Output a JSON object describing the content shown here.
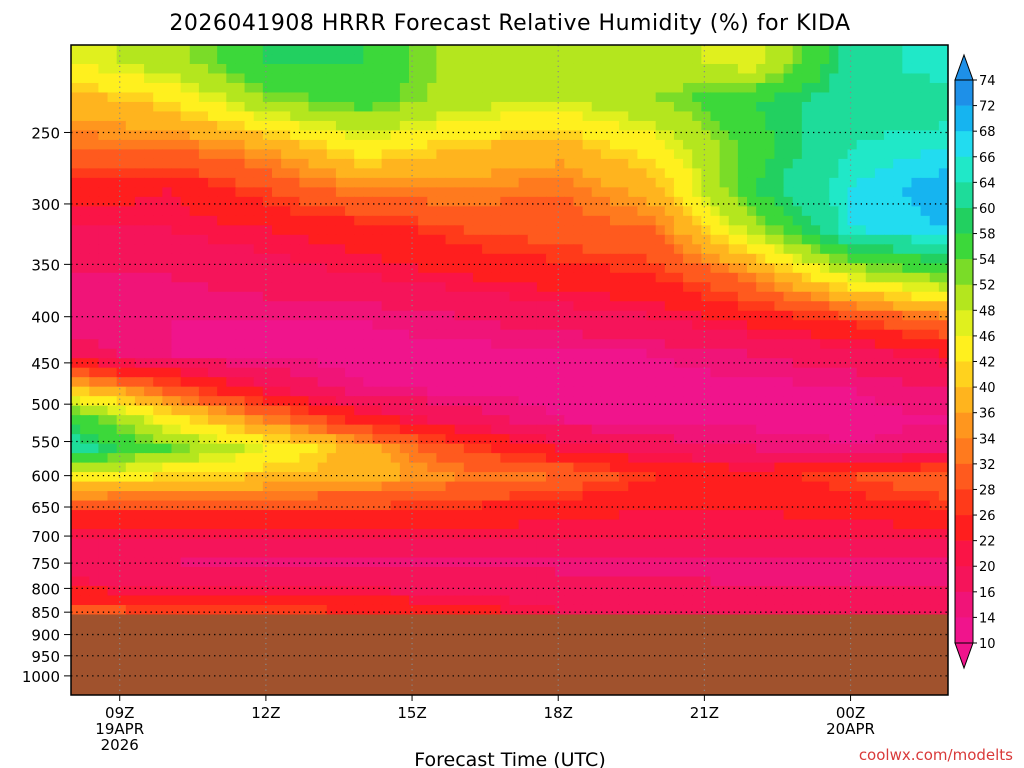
{
  "chart_data": {
    "type": "heatmap",
    "title": "2026041908 HRRR Forecast Relative Humidity (%) for KIDA",
    "xlabel": "Forecast Time (UTC)",
    "credit": "coolwx.com/modelts",
    "x_ticks": [
      {
        "hour": 9,
        "lines": [
          "09Z",
          "19APR",
          "2026"
        ]
      },
      {
        "hour": 12,
        "lines": [
          "12Z"
        ]
      },
      {
        "hour": 15,
        "lines": [
          "15Z"
        ]
      },
      {
        "hour": 18,
        "lines": [
          "18Z"
        ]
      },
      {
        "hour": 21,
        "lines": [
          "21Z"
        ]
      },
      {
        "hour": 24,
        "lines": [
          "00Z",
          "20APR"
        ]
      }
    ],
    "x_range_hours": [
      8,
      26
    ],
    "y_ticks": [
      250,
      300,
      350,
      400,
      450,
      500,
      550,
      600,
      650,
      700,
      750,
      800,
      850,
      900,
      950,
      1000
    ],
    "y_range_hpa": [
      200,
      1050
    ],
    "y_scale": "log",
    "below_ground_hpa": 855,
    "grid": true,
    "colorbar_levels": [
      74,
      72,
      68,
      66,
      64,
      60,
      58,
      54,
      52,
      48,
      46,
      42,
      40,
      36,
      34,
      32,
      28,
      26,
      22,
      20,
      16,
      14,
      10
    ],
    "colorbar_colors": [
      "#1e90e8",
      "#16b4f0",
      "#22dcf0",
      "#20e8c8",
      "#1edc9a",
      "#22d060",
      "#3cd83a",
      "#7adc28",
      "#b4e61e",
      "#e0f01e",
      "#fff01e",
      "#ffd21e",
      "#ffb41e",
      "#ff961e",
      "#ff7a1e",
      "#ff5a1e",
      "#ff3a1a",
      "#ff1e1e",
      "#fa1446",
      "#f5145a",
      "#f01478",
      "#f0148c"
    ],
    "colorbar_extends": [
      "max",
      "min"
    ],
    "colorbar_position": "right",
    "ground_color": "#a0522d",
    "relative_humidity_percent": {
      "forecast_hours": [
        8,
        10,
        12,
        14,
        16,
        18,
        20,
        22,
        24,
        26
      ],
      "pressure_hpa": [
        210,
        230,
        260,
        290,
        320,
        360,
        400,
        440,
        480,
        520,
        560,
        600,
        650,
        700,
        750,
        800,
        850
      ],
      "values": [
        [
          46,
          50,
          58,
          58,
          50,
          52,
          50,
          46,
          62,
          66
        ],
        [
          38,
          42,
          52,
          56,
          50,
          48,
          52,
          58,
          62,
          62
        ],
        [
          32,
          32,
          36,
          44,
          40,
          38,
          44,
          56,
          64,
          66
        ],
        [
          24,
          22,
          28,
          34,
          34,
          32,
          38,
          58,
          66,
          70
        ],
        [
          20,
          20,
          22,
          24,
          28,
          30,
          32,
          50,
          66,
          68
        ],
        [
          16,
          16,
          18,
          20,
          22,
          24,
          26,
          34,
          48,
          54
        ],
        [
          14,
          14,
          14,
          14,
          16,
          18,
          20,
          24,
          28,
          34
        ],
        [
          18,
          14,
          13,
          13,
          13,
          13,
          14,
          16,
          18,
          22
        ],
        [
          40,
          30,
          20,
          14,
          13,
          13,
          13,
          13,
          14,
          16
        ],
        [
          58,
          44,
          34,
          24,
          18,
          14,
          13,
          13,
          13,
          14
        ],
        [
          62,
          54,
          46,
          38,
          28,
          22,
          18,
          16,
          14,
          16
        ],
        [
          46,
          42,
          40,
          38,
          34,
          32,
          26,
          24,
          28,
          32
        ],
        [
          28,
          28,
          28,
          28,
          26,
          24,
          22,
          22,
          24,
          26
        ],
        [
          20,
          20,
          20,
          20,
          20,
          20,
          20,
          20,
          20,
          20
        ],
        [
          16,
          16,
          15,
          15,
          15,
          15,
          15,
          15,
          15,
          15
        ],
        [
          22,
          20,
          20,
          20,
          18,
          18,
          17,
          16,
          16,
          16
        ],
        [
          30,
          28,
          28,
          26,
          24,
          20,
          18,
          16,
          16,
          16
        ]
      ]
    }
  }
}
